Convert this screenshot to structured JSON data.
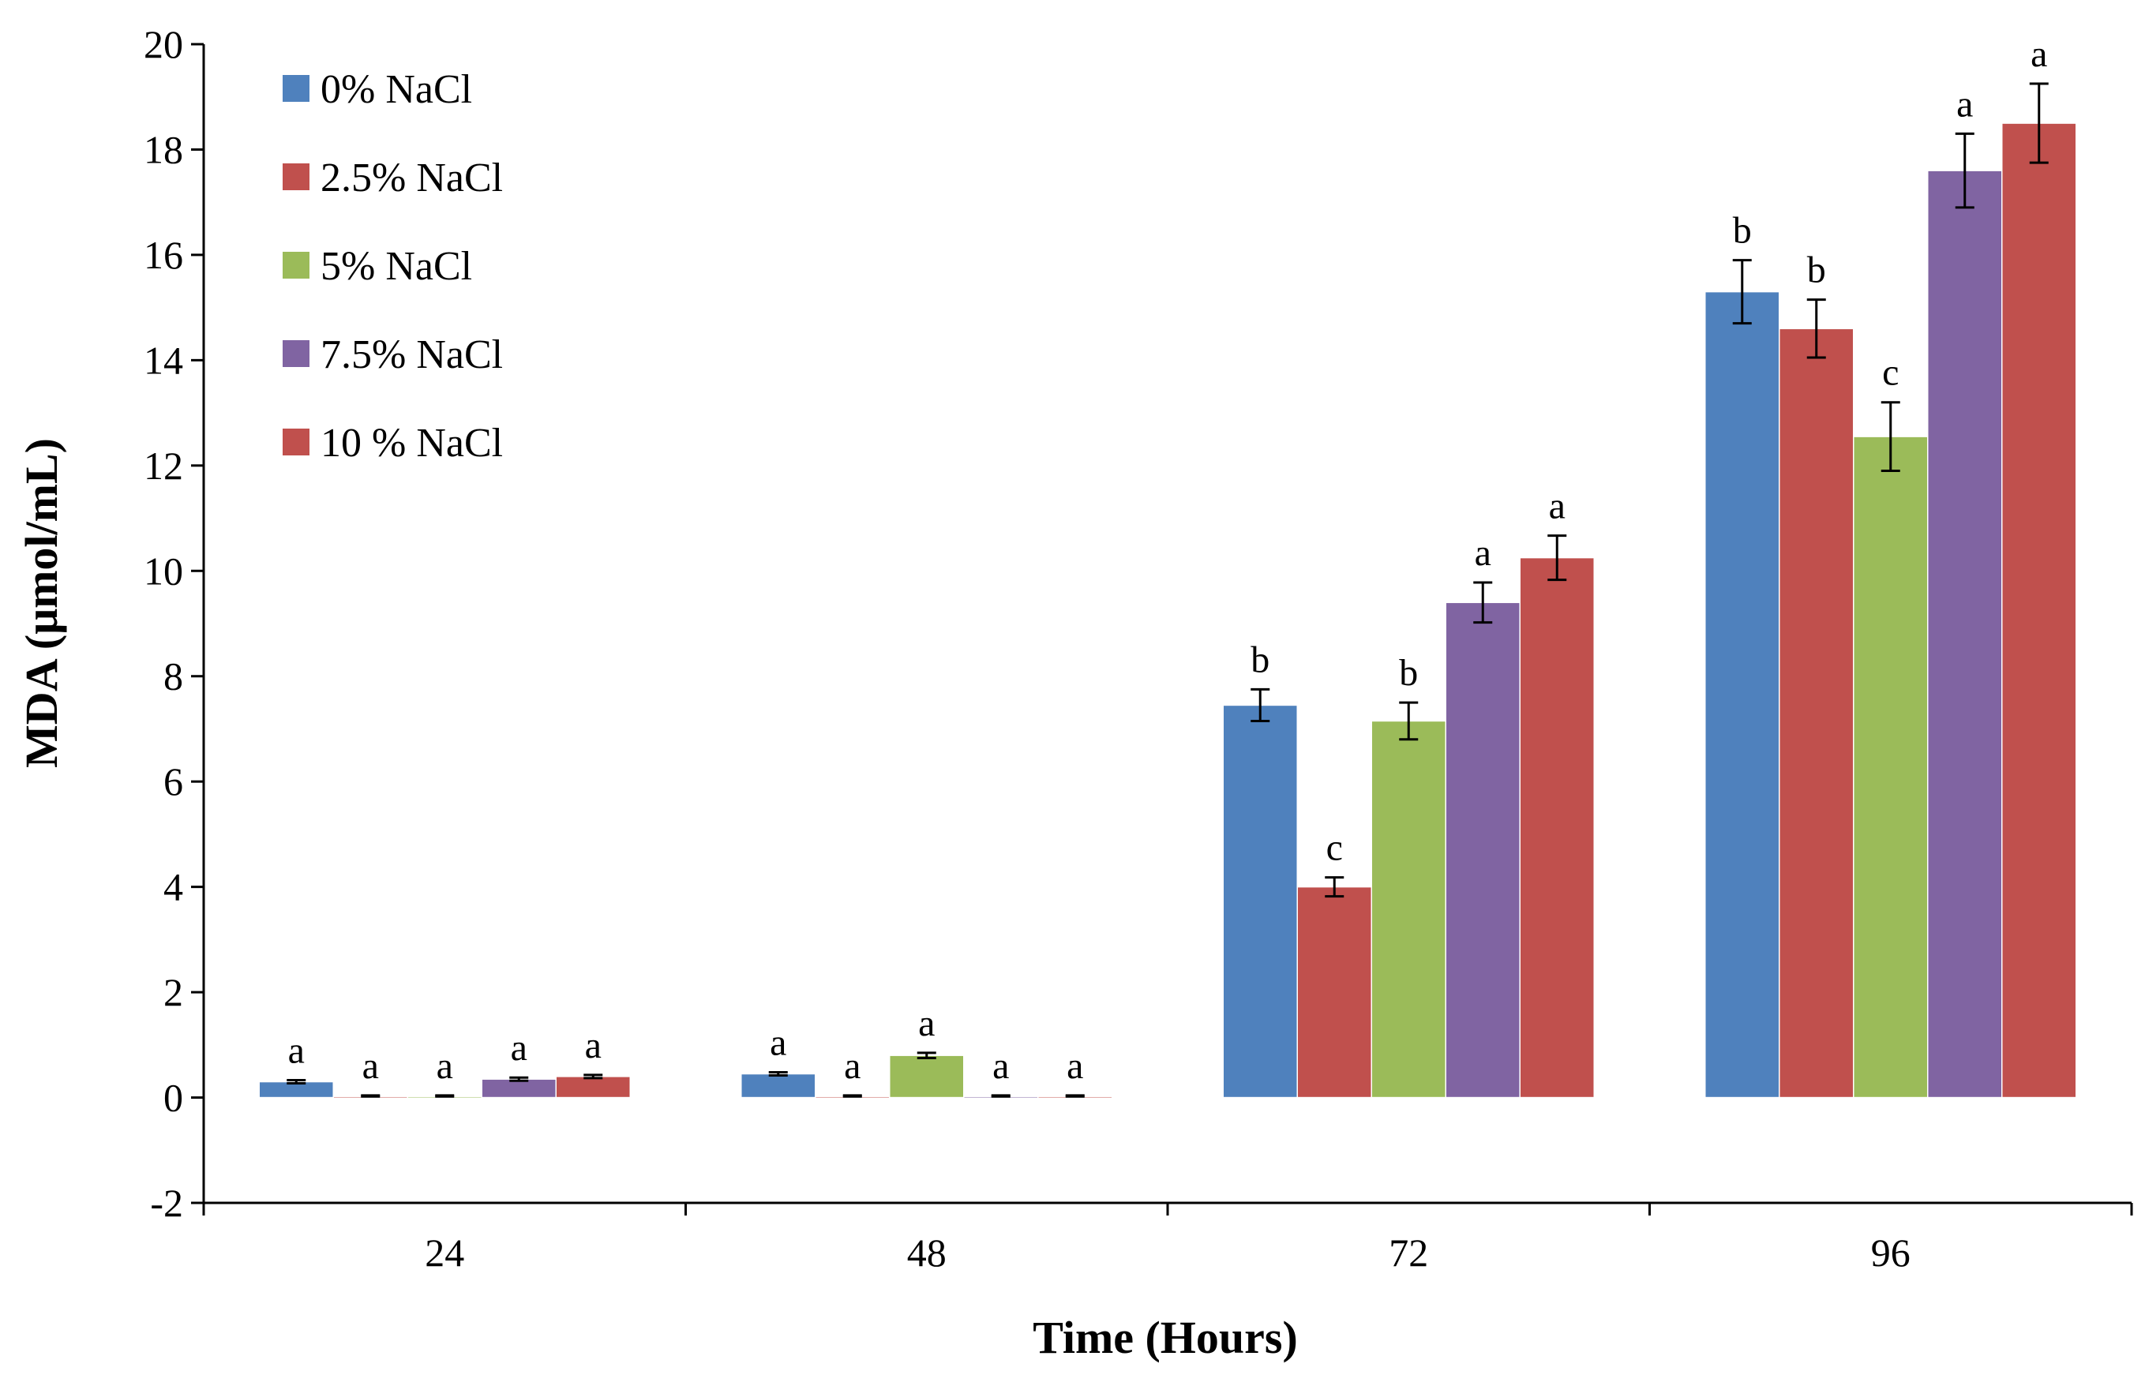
{
  "chart_data": {
    "type": "bar",
    "title": "",
    "xlabel": "Time (Hours)",
    "ylabel": "MDA (μmol/mL)",
    "ylim": [
      -2,
      20
    ],
    "yticks": [
      "-2",
      "0",
      "2",
      "4",
      "6",
      "8",
      "10",
      "12",
      "14",
      "16",
      "18",
      "20"
    ],
    "categories": [
      "24",
      "48",
      "72",
      "96"
    ],
    "legend_position": "top-left",
    "series": [
      {
        "name": "0% NaCl",
        "color": "#4F81BD",
        "values": [
          0.3,
          0.45,
          7.45,
          15.3
        ],
        "errors": [
          0.03,
          0.03,
          0.3,
          0.6
        ],
        "labels": [
          "a",
          "a",
          "b",
          "b"
        ]
      },
      {
        "name": "2.5% NaCl",
        "color": "#C0504D",
        "values": [
          0.02,
          0.02,
          4.0,
          14.6
        ],
        "errors": [
          0.02,
          0.02,
          0.18,
          0.55
        ],
        "labels": [
          "a",
          "a",
          "c",
          "b"
        ]
      },
      {
        "name": "5% NaCl",
        "color": "#9BBB59",
        "values": [
          0.02,
          0.8,
          7.15,
          12.55
        ],
        "errors": [
          0.02,
          0.05,
          0.35,
          0.65
        ],
        "labels": [
          "a",
          "a",
          "b",
          "c"
        ]
      },
      {
        "name": "7.5% NaCl",
        "color": "#8064A2",
        "values": [
          0.35,
          0.02,
          9.4,
          17.6
        ],
        "errors": [
          0.03,
          0.02,
          0.38,
          0.7
        ],
        "labels": [
          "a",
          "a",
          "a",
          "a"
        ]
      },
      {
        "name": "10 % NaCl",
        "color": "#C0504D",
        "values": [
          0.4,
          0.02,
          10.25,
          18.5
        ],
        "errors": [
          0.03,
          0.02,
          0.42,
          0.75
        ],
        "labels": [
          "a",
          "a",
          "a",
          "a"
        ]
      }
    ]
  }
}
